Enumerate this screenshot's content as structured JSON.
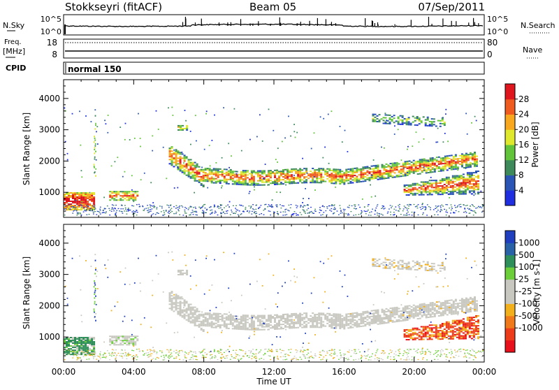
{
  "header": {
    "station": "Stokkseyri (fitACF)",
    "beam": "Beam 05",
    "date": "07/Sep/2011"
  },
  "noise_panel": {
    "left_label": "N.Sky",
    "left_ticks": [
      "10^5",
      "10^0"
    ],
    "right_label": "N.Search",
    "right_ticks": [
      "10^5",
      "10^0"
    ]
  },
  "freq_panel": {
    "left_label_line1": "Freq.",
    "left_label_line2": "[MHz]",
    "left_ticks": [
      "18",
      "8"
    ],
    "right_label": "Nave",
    "right_ticks": [
      "80",
      "0"
    ]
  },
  "cpid_panel": {
    "label": "CPID",
    "mode": "normal 150"
  },
  "x_axis": {
    "label": "Time UT",
    "ticks": [
      "00:00",
      "04:00",
      "08:00",
      "12:00",
      "16:00",
      "20:00",
      "00:00"
    ]
  },
  "colors": {
    "power_scale": [
      "#1f2fe0",
      "#2a55b4",
      "#3e8a5a",
      "#62c43a",
      "#dfe82c",
      "#f7a81f",
      "#ef5a1e",
      "#e0161e"
    ],
    "velocity_scale": [
      "#1f3fbf",
      "#2a62a8",
      "#2f8f5a",
      "#6ccf3a",
      "#c8c8c0",
      "#c8c8c0",
      "#f2b01c",
      "#f07a1a",
      "#ec3c1a",
      "#e8101a"
    ]
  },
  "chart_data": [
    {
      "type": "heatmap",
      "name": "power",
      "ylabel": "Slant Range [km]",
      "xlabel": "Time UT",
      "x_range_hours": [
        0,
        24
      ],
      "ylim": [
        200,
        4600
      ],
      "yticks": [
        "1000",
        "2000",
        "3000",
        "4000"
      ],
      "colorbar": {
        "label": "Power [dB]",
        "ticks": [
          "4",
          "8",
          "12",
          "16",
          "20",
          "24",
          "28"
        ],
        "range": [
          0,
          32
        ]
      }
    },
    {
      "type": "heatmap",
      "name": "velocity",
      "ylabel": "Slant Range [km]",
      "xlabel": "Time UT",
      "x_range_hours": [
        0,
        24
      ],
      "ylim": [
        200,
        4600
      ],
      "yticks": [
        "1000",
        "2000",
        "3000",
        "4000"
      ],
      "colorbar": {
        "label": "Velocity [m s-1]",
        "ticks": [
          "1000",
          "500",
          "100",
          "25",
          "-25",
          "-100",
          "-500",
          "-1000"
        ]
      }
    }
  ]
}
